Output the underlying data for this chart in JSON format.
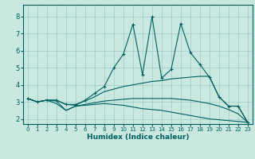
{
  "xlabel": "Humidex (Indice chaleur)",
  "background_color": "#c8e8e0",
  "grid_color": "#a0ccc4",
  "line_color": "#006060",
  "xlim": [
    -0.5,
    23.5
  ],
  "ylim": [
    1.7,
    8.7
  ],
  "xticks": [
    0,
    1,
    2,
    3,
    4,
    5,
    6,
    7,
    8,
    9,
    10,
    11,
    12,
    13,
    14,
    15,
    16,
    17,
    18,
    19,
    20,
    21,
    22,
    23
  ],
  "yticks": [
    2,
    3,
    4,
    5,
    6,
    7,
    8
  ],
  "series": [
    {
      "x": [
        0,
        1,
        2,
        3,
        4,
        5,
        6,
        7,
        8,
        9,
        10,
        11,
        12,
        13,
        14,
        15,
        16,
        17,
        18,
        19,
        20,
        21,
        22,
        23
      ],
      "y": [
        3.2,
        3.0,
        3.1,
        3.1,
        2.85,
        2.8,
        3.1,
        3.5,
        3.9,
        5.0,
        5.8,
        7.55,
        4.6,
        8.0,
        4.4,
        4.9,
        7.6,
        5.9,
        5.2,
        4.45,
        3.3,
        2.75,
        2.75,
        1.8
      ],
      "marker": "+"
    },
    {
      "x": [
        0,
        1,
        2,
        3,
        4,
        5,
        6,
        7,
        8,
        9,
        10,
        11,
        12,
        13,
        14,
        15,
        16,
        17,
        18,
        19,
        20,
        21,
        22,
        23
      ],
      "y": [
        3.2,
        3.0,
        3.1,
        3.1,
        2.85,
        2.85,
        3.05,
        3.3,
        3.6,
        3.75,
        3.9,
        4.0,
        4.1,
        4.2,
        4.25,
        4.35,
        4.4,
        4.45,
        4.5,
        4.5,
        3.3,
        2.75,
        2.75,
        1.8
      ],
      "marker": null
    },
    {
      "x": [
        0,
        1,
        2,
        3,
        4,
        5,
        6,
        7,
        8,
        9,
        10,
        11,
        12,
        13,
        14,
        15,
        16,
        17,
        18,
        19,
        20,
        21,
        22,
        23
      ],
      "y": [
        3.2,
        3.0,
        3.1,
        3.05,
        2.5,
        2.75,
        2.85,
        2.95,
        3.05,
        3.1,
        3.15,
        3.2,
        3.2,
        3.2,
        3.2,
        3.2,
        3.15,
        3.1,
        3.0,
        2.9,
        2.75,
        2.55,
        2.3,
        1.8
      ],
      "marker": null
    },
    {
      "x": [
        0,
        1,
        2,
        3,
        4,
        5,
        6,
        7,
        8,
        9,
        10,
        11,
        12,
        13,
        14,
        15,
        16,
        17,
        18,
        19,
        20,
        21,
        22,
        23
      ],
      "y": [
        3.2,
        3.0,
        3.1,
        2.9,
        2.5,
        2.75,
        2.8,
        2.85,
        2.9,
        2.85,
        2.8,
        2.7,
        2.6,
        2.55,
        2.5,
        2.4,
        2.3,
        2.2,
        2.1,
        2.0,
        1.95,
        1.9,
        1.85,
        1.8
      ],
      "marker": null
    }
  ]
}
